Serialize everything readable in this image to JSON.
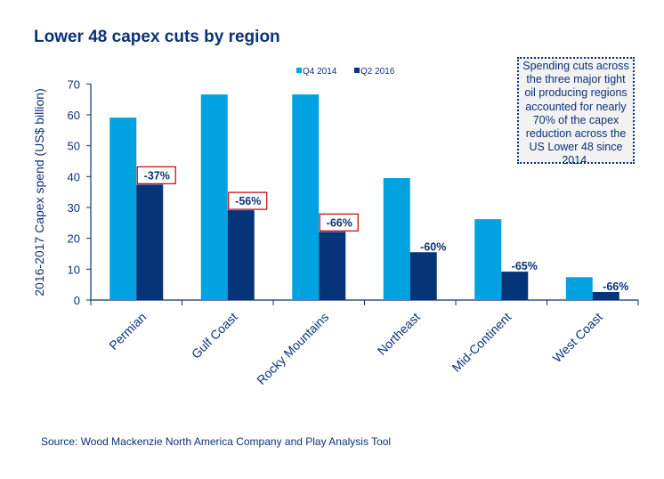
{
  "title": "Lower 48 capex cuts by region",
  "note": "Spending cuts across the three major tight oil producing regions accounted for nearly 70% of the capex reduction across the US Lower 48 since 2014.",
  "source": "Source: Wood Mackenzie North America Company and Play Analysis Tool",
  "chart_data": {
    "type": "bar",
    "title": "Lower 48 capex cuts by region",
    "ylabel": "2016-2017 Capex spend (US$ billion)",
    "xlabel": "",
    "ylim": [
      0,
      70
    ],
    "yticks": [
      "0",
      "10",
      "20",
      "30",
      "40",
      "50",
      "60",
      "70"
    ],
    "grid": false,
    "legend": "top",
    "categories": [
      "Permian",
      "Gulf Coast",
      "Rocky Mountains",
      "Northeast",
      "Mid-Continent",
      "West Coast"
    ],
    "series": [
      {
        "name": "Q4 2014",
        "color": "#00a3e0",
        "values": [
          59.1,
          66.6,
          66.6,
          39.5,
          26.2,
          7.4
        ]
      },
      {
        "name": "Q2 2016",
        "color": "#063478",
        "values": [
          37.4,
          29.1,
          22.1,
          15.5,
          9.2,
          2.6
        ]
      }
    ],
    "annotations": [
      {
        "label": "-37%",
        "boxed": true
      },
      {
        "label": "-56%",
        "boxed": true
      },
      {
        "label": "-66%",
        "boxed": true
      },
      {
        "label": "-60%",
        "boxed": false
      },
      {
        "label": "-65%",
        "boxed": false
      },
      {
        "label": "-66%",
        "boxed": false
      }
    ]
  }
}
